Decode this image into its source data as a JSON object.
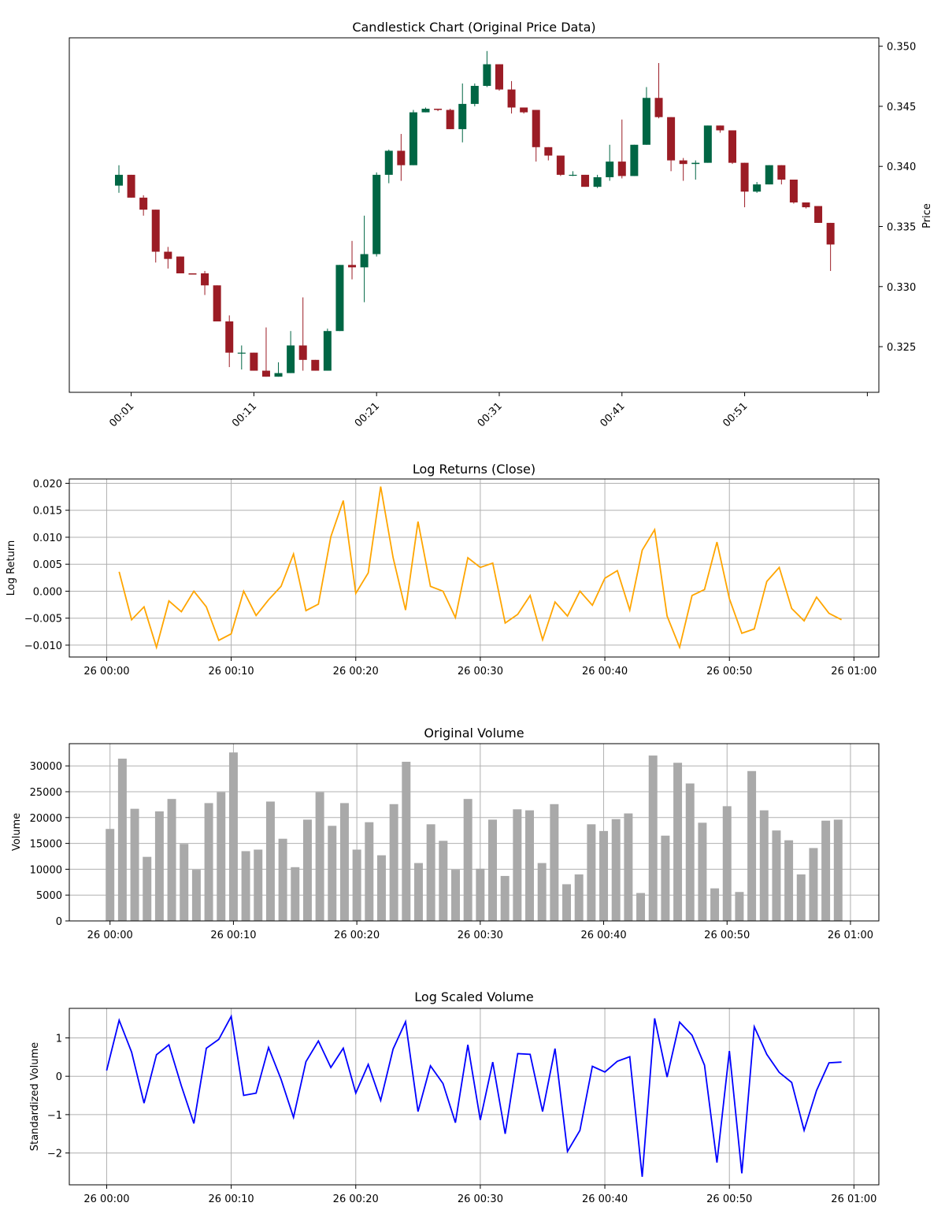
{
  "colors": {
    "up": "#006644",
    "down": "#9b1c25",
    "returns_line": "#ffa500",
    "volume_bar": "#a9a9a9",
    "scaled_line": "#0000ff",
    "grid": "#b0b0b0"
  },
  "chart_data": [
    {
      "type": "candlestick",
      "title": "Candlestick Chart (Original Price Data)",
      "ylabel": "Price",
      "yaxis_side": "right",
      "ylim": [
        0.3212,
        0.3507
      ],
      "yticks": [
        "0.325",
        "0.330",
        "0.335",
        "0.340",
        "0.345",
        "0.350"
      ],
      "xticks": [
        "00:01",
        "00:11",
        "00:21",
        "00:31",
        "00:41",
        "00:51",
        ""
      ],
      "grid": false,
      "candles": [
        {
          "t": "00:00",
          "o": 0.3384,
          "h": 0.3401,
          "l": 0.3378,
          "c": 0.3393
        },
        {
          "t": "00:01",
          "o": 0.3393,
          "h": 0.3393,
          "l": 0.3374,
          "c": 0.3374
        },
        {
          "t": "00:02",
          "o": 0.3374,
          "h": 0.3376,
          "l": 0.3359,
          "c": 0.3364
        },
        {
          "t": "00:03",
          "o": 0.3364,
          "h": 0.3364,
          "l": 0.332,
          "c": 0.3329
        },
        {
          "t": "00:04",
          "o": 0.3329,
          "h": 0.3333,
          "l": 0.3315,
          "c": 0.3323
        },
        {
          "t": "00:05",
          "o": 0.3325,
          "h": 0.3325,
          "l": 0.3311,
          "c": 0.3311
        },
        {
          "t": "00:06",
          "o": 0.3311,
          "h": 0.3311,
          "l": 0.331,
          "c": 0.331
        },
        {
          "t": "00:07",
          "o": 0.3311,
          "h": 0.3313,
          "l": 0.3293,
          "c": 0.3301
        },
        {
          "t": "00:08",
          "o": 0.3301,
          "h": 0.3301,
          "l": 0.3271,
          "c": 0.3271
        },
        {
          "t": "00:09",
          "o": 0.3271,
          "h": 0.3276,
          "l": 0.3233,
          "c": 0.3245
        },
        {
          "t": "00:10",
          "o": 0.3245,
          "h": 0.3251,
          "l": 0.3231,
          "c": 0.3245
        },
        {
          "t": "00:11",
          "o": 0.3245,
          "h": 0.3245,
          "l": 0.323,
          "c": 0.323
        },
        {
          "t": "00:12",
          "o": 0.323,
          "h": 0.3266,
          "l": 0.3225,
          "c": 0.3225
        },
        {
          "t": "00:13",
          "o": 0.3225,
          "h": 0.3237,
          "l": 0.3225,
          "c": 0.3228
        },
        {
          "t": "00:14",
          "o": 0.3228,
          "h": 0.3263,
          "l": 0.3228,
          "c": 0.3251
        },
        {
          "t": "00:15",
          "o": 0.3251,
          "h": 0.3291,
          "l": 0.323,
          "c": 0.3239
        },
        {
          "t": "00:16",
          "o": 0.3239,
          "h": 0.3239,
          "l": 0.323,
          "c": 0.323
        },
        {
          "t": "00:17",
          "o": 0.323,
          "h": 0.3265,
          "l": 0.323,
          "c": 0.3263
        },
        {
          "t": "00:18",
          "o": 0.3263,
          "h": 0.3318,
          "l": 0.3263,
          "c": 0.3318
        },
        {
          "t": "00:19",
          "o": 0.3318,
          "h": 0.3338,
          "l": 0.3306,
          "c": 0.3316
        },
        {
          "t": "00:20",
          "o": 0.3316,
          "h": 0.3359,
          "l": 0.3287,
          "c": 0.3327
        },
        {
          "t": "00:21",
          "o": 0.3327,
          "h": 0.3395,
          "l": 0.3325,
          "c": 0.3393
        },
        {
          "t": "00:22",
          "o": 0.3393,
          "h": 0.3414,
          "l": 0.3386,
          "c": 0.3413
        },
        {
          "t": "00:23",
          "o": 0.3413,
          "h": 0.3427,
          "l": 0.3388,
          "c": 0.3401
        },
        {
          "t": "00:24",
          "o": 0.3401,
          "h": 0.3447,
          "l": 0.3401,
          "c": 0.3445
        },
        {
          "t": "00:25",
          "o": 0.3445,
          "h": 0.3449,
          "l": 0.3445,
          "c": 0.3448
        },
        {
          "t": "00:26",
          "o": 0.3448,
          "h": 0.3448,
          "l": 0.3446,
          "c": 0.3447
        },
        {
          "t": "00:27",
          "o": 0.3447,
          "h": 0.3448,
          "l": 0.3431,
          "c": 0.3431
        },
        {
          "t": "00:28",
          "o": 0.3431,
          "h": 0.3469,
          "l": 0.342,
          "c": 0.3452
        },
        {
          "t": "00:29",
          "o": 0.3452,
          "h": 0.3469,
          "l": 0.345,
          "c": 0.3467
        },
        {
          "t": "00:30",
          "o": 0.3467,
          "h": 0.3496,
          "l": 0.3466,
          "c": 0.3485
        },
        {
          "t": "00:31",
          "o": 0.3485,
          "h": 0.3485,
          "l": 0.3463,
          "c": 0.3464
        },
        {
          "t": "00:32",
          "o": 0.3464,
          "h": 0.3471,
          "l": 0.3444,
          "c": 0.3449
        },
        {
          "t": "00:33",
          "o": 0.3449,
          "h": 0.3449,
          "l": 0.3444,
          "c": 0.3445
        },
        {
          "t": "00:34",
          "o": 0.3447,
          "h": 0.3447,
          "l": 0.3404,
          "c": 0.3416
        },
        {
          "t": "00:35",
          "o": 0.3416,
          "h": 0.3416,
          "l": 0.3405,
          "c": 0.3409
        },
        {
          "t": "00:36",
          "o": 0.3409,
          "h": 0.3409,
          "l": 0.3392,
          "c": 0.3393
        },
        {
          "t": "00:37",
          "o": 0.3393,
          "h": 0.3396,
          "l": 0.3392,
          "c": 0.3393
        },
        {
          "t": "00:38",
          "o": 0.3393,
          "h": 0.3393,
          "l": 0.3383,
          "c": 0.3383
        },
        {
          "t": "00:39",
          "o": 0.3383,
          "h": 0.3393,
          "l": 0.3382,
          "c": 0.3391
        },
        {
          "t": "00:40",
          "o": 0.3391,
          "h": 0.3418,
          "l": 0.3388,
          "c": 0.3404
        },
        {
          "t": "00:41",
          "o": 0.3404,
          "h": 0.3439,
          "l": 0.339,
          "c": 0.3392
        },
        {
          "t": "00:42",
          "o": 0.3392,
          "h": 0.3418,
          "l": 0.3392,
          "c": 0.3418
        },
        {
          "t": "00:43",
          "o": 0.3418,
          "h": 0.3466,
          "l": 0.3418,
          "c": 0.3457
        },
        {
          "t": "00:44",
          "o": 0.3457,
          "h": 0.3486,
          "l": 0.344,
          "c": 0.3441
        },
        {
          "t": "00:45",
          "o": 0.3441,
          "h": 0.3441,
          "l": 0.3396,
          "c": 0.3405
        },
        {
          "t": "00:46",
          "o": 0.3405,
          "h": 0.3407,
          "l": 0.3388,
          "c": 0.3402
        },
        {
          "t": "00:47",
          "o": 0.3402,
          "h": 0.3405,
          "l": 0.3389,
          "c": 0.3403
        },
        {
          "t": "00:48",
          "o": 0.3403,
          "h": 0.3434,
          "l": 0.3403,
          "c": 0.3434
        },
        {
          "t": "00:49",
          "o": 0.3434,
          "h": 0.3434,
          "l": 0.3428,
          "c": 0.343
        },
        {
          "t": "00:50",
          "o": 0.343,
          "h": 0.343,
          "l": 0.3402,
          "c": 0.3403
        },
        {
          "t": "00:51",
          "o": 0.3403,
          "h": 0.3403,
          "l": 0.3366,
          "c": 0.3379
        },
        {
          "t": "00:52",
          "o": 0.3379,
          "h": 0.3387,
          "l": 0.3378,
          "c": 0.3385
        },
        {
          "t": "00:53",
          "o": 0.3385,
          "h": 0.3401,
          "l": 0.3385,
          "c": 0.3401
        },
        {
          "t": "00:54",
          "o": 0.3401,
          "h": 0.3401,
          "l": 0.3385,
          "c": 0.3389
        },
        {
          "t": "00:55",
          "o": 0.3389,
          "h": 0.3389,
          "l": 0.3369,
          "c": 0.337
        },
        {
          "t": "00:56",
          "o": 0.337,
          "h": 0.337,
          "l": 0.3365,
          "c": 0.3366
        },
        {
          "t": "00:57",
          "o": 0.3367,
          "h": 0.3367,
          "l": 0.3353,
          "c": 0.3353
        },
        {
          "t": "00:58",
          "o": 0.3353,
          "h": 0.3353,
          "l": 0.3313,
          "c": 0.3335
        }
      ]
    },
    {
      "type": "line",
      "title": "Log Returns (Close)",
      "ylabel": "Log Return",
      "ylim": [
        -0.0122,
        0.0208
      ],
      "yticks": [
        -0.01,
        -0.005,
        0.0,
        0.005,
        0.01,
        0.015,
        0.02
      ],
      "ytick_labels": [
        "−0.010",
        "−0.005",
        "0.000",
        "0.005",
        "0.010",
        "0.015",
        "0.020"
      ],
      "xlim_minutes": [
        -3,
        62
      ],
      "xtick_minutes": [
        0,
        10,
        20,
        30,
        40,
        50,
        60
      ],
      "xticks": [
        "26 00:00",
        "26 00:10",
        "26 00:20",
        "26 00:30",
        "26 00:40",
        "26 00:50",
        "26 01:00"
      ],
      "grid": true,
      "series": [
        {
          "x_minutes": [
            1,
            2,
            3,
            4,
            5,
            6,
            7,
            8,
            9,
            10,
            11,
            12,
            13,
            14,
            15,
            16,
            17,
            18,
            19,
            20,
            21,
            22,
            23,
            24,
            25,
            26,
            27,
            28,
            29,
            30,
            31,
            32,
            33,
            34,
            35,
            36,
            37,
            38,
            39,
            40,
            41,
            42,
            43,
            44,
            45,
            46,
            47,
            48,
            49,
            50,
            51,
            52,
            53,
            54,
            55,
            56,
            57,
            58,
            59
          ],
          "values": [
            0.0036,
            -0.0053,
            -0.0029,
            -0.0104,
            -0.0018,
            -0.0038,
            0.0,
            -0.0029,
            -0.0091,
            -0.0079,
            0.0,
            -0.0045,
            -0.0016,
            0.0009,
            0.0069,
            -0.0036,
            -0.0024,
            0.0101,
            0.0168,
            -0.0004,
            0.0034,
            0.0194,
            0.0062,
            -0.0035,
            0.0129,
            0.0009,
            0.0,
            -0.0049,
            0.0062,
            0.0044,
            0.0052,
            -0.0059,
            -0.0043,
            -0.0008,
            -0.009,
            -0.002,
            -0.0046,
            0.0,
            -0.0026,
            0.0024,
            0.0038,
            -0.0035,
            0.0076,
            0.0114,
            -0.0046,
            -0.0104,
            -0.0008,
            0.0003,
            0.0091,
            -0.0014,
            -0.0078,
            -0.007,
            0.0018,
            0.0044,
            -0.0032,
            -0.0055,
            -0.0011,
            -0.0041,
            -0.0053
          ]
        }
      ]
    },
    {
      "type": "bar",
      "title": "Original Volume",
      "ylabel": "Volume",
      "ylim": [
        0,
        34300
      ],
      "yticks": [
        0,
        5000,
        10000,
        15000,
        20000,
        25000,
        30000
      ],
      "ytick_labels": [
        "0",
        "5000",
        "10000",
        "15000",
        "20000",
        "25000",
        "30000"
      ],
      "xlim_minutes": [
        -3.3,
        62.3
      ],
      "xtick_minutes": [
        0,
        10,
        20,
        30,
        40,
        50,
        60
      ],
      "xticks": [
        "26 00:00",
        "26 00:10",
        "26 00:20",
        "26 00:30",
        "26 00:40",
        "26 00:50",
        "26 01:00"
      ],
      "grid": true,
      "series": [
        {
          "x_minutes": [
            0,
            1,
            2,
            3,
            4,
            5,
            6,
            7,
            8,
            9,
            10,
            11,
            12,
            13,
            14,
            15,
            16,
            17,
            18,
            19,
            20,
            21,
            22,
            23,
            24,
            25,
            26,
            27,
            28,
            29,
            30,
            31,
            32,
            33,
            34,
            35,
            36,
            37,
            38,
            39,
            40,
            41,
            42,
            43,
            44,
            45,
            46,
            47,
            48,
            49,
            50,
            51,
            52,
            53,
            54,
            55,
            56,
            57,
            58,
            59
          ],
          "values": [
            17800,
            31400,
            21700,
            12400,
            21200,
            23600,
            14900,
            9900,
            22800,
            24900,
            32600,
            13500,
            13800,
            23100,
            15900,
            10400,
            19600,
            24900,
            18400,
            22800,
            13800,
            19100,
            12700,
            22600,
            30800,
            11200,
            18700,
            15500,
            9900,
            23600,
            10100,
            19600,
            8700,
            21600,
            21400,
            11200,
            22600,
            7100,
            9000,
            18700,
            17400,
            19700,
            20800,
            5400,
            32000,
            16500,
            30600,
            26600,
            19000,
            6300,
            22200,
            5600,
            29000,
            21400,
            17500,
            15600,
            9000,
            14100,
            19400,
            19600
          ]
        }
      ]
    },
    {
      "type": "line",
      "title": "Log Scaled Volume",
      "ylabel": "Standardized Volume",
      "ylim": [
        -2.83,
        1.77
      ],
      "yticks": [
        -2,
        -1,
        0,
        1
      ],
      "ytick_labels": [
        "−2",
        "−1",
        "0",
        "1"
      ],
      "xlim_minutes": [
        -3,
        62
      ],
      "xtick_minutes": [
        0,
        10,
        20,
        30,
        40,
        50,
        60
      ],
      "xticks": [
        "26 00:00",
        "26 00:10",
        "26 00:20",
        "26 00:30",
        "26 00:40",
        "26 00:50",
        "26 01:00"
      ],
      "grid": true,
      "series": [
        {
          "x_minutes": [
            0,
            1,
            2,
            3,
            4,
            5,
            6,
            7,
            8,
            9,
            10,
            11,
            12,
            13,
            14,
            15,
            16,
            17,
            18,
            19,
            20,
            21,
            22,
            23,
            24,
            25,
            26,
            27,
            28,
            29,
            30,
            31,
            32,
            33,
            34,
            35,
            36,
            37,
            38,
            39,
            40,
            41,
            42,
            43,
            44,
            45,
            46,
            47,
            48,
            49,
            50,
            51,
            52,
            53,
            54,
            55,
            56,
            57,
            58,
            59
          ],
          "values": [
            0.15,
            1.46,
            0.63,
            -0.7,
            0.56,
            0.82,
            -0.25,
            -1.23,
            0.73,
            0.96,
            1.56,
            -0.5,
            -0.44,
            0.75,
            -0.08,
            -1.07,
            0.38,
            0.92,
            0.23,
            0.73,
            -0.44,
            0.31,
            -0.63,
            0.71,
            1.42,
            -0.92,
            0.27,
            -0.19,
            -1.21,
            0.82,
            -1.14,
            0.37,
            -1.5,
            0.59,
            0.57,
            -0.92,
            0.72,
            -1.96,
            -1.41,
            0.26,
            0.11,
            0.39,
            0.51,
            -2.62,
            1.51,
            -0.02,
            1.41,
            1.07,
            0.29,
            -2.25,
            0.66,
            -2.53,
            1.29,
            0.57,
            0.1,
            -0.16,
            -1.41,
            -0.37,
            0.35,
            0.37
          ]
        }
      ]
    }
  ]
}
